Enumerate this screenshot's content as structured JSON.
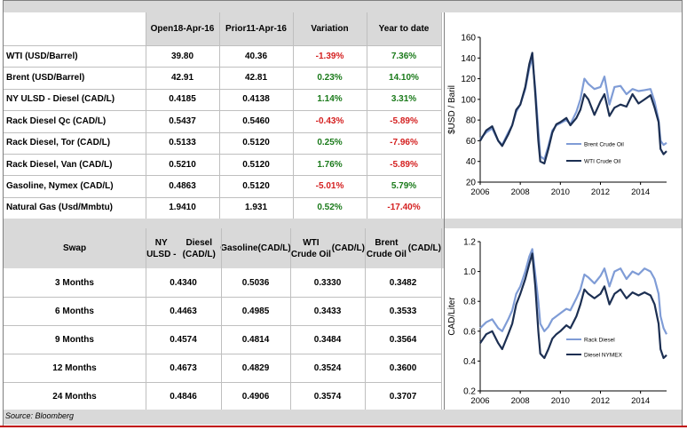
{
  "commodities": {
    "headers": {
      "open_line1": "Open",
      "open_line2": "18-Apr-16",
      "prior_line1": "Prior",
      "prior_line2": "11-Apr-16",
      "variation": "Variation",
      "ytd": "Year to date"
    },
    "rows": [
      {
        "name": "WTI (USD/Barrel)",
        "open": "39.80",
        "prior": "40.36",
        "variation": "-1.39%",
        "ytd": "7.36%",
        "var_positive": false,
        "ytd_positive": true
      },
      {
        "name": "Brent (USD/Barrel)",
        "open": "42.91",
        "prior": "42.81",
        "variation": "0.23%",
        "ytd": "14.10%",
        "var_positive": true,
        "ytd_positive": true
      },
      {
        "name": "NY ULSD - Diesel (CAD/L)",
        "open": "0.4185",
        "prior": "0.4138",
        "variation": "1.14%",
        "ytd": "3.31%",
        "var_positive": true,
        "ytd_positive": true
      },
      {
        "name": "Rack Diesel Qc (CAD/L)",
        "open": "0.5437",
        "prior": "0.5460",
        "variation": "-0.43%",
        "ytd": "-5.89%",
        "var_positive": false,
        "ytd_positive": false
      },
      {
        "name": "Rack Diesel, Tor (CAD/L)",
        "open": "0.5133",
        "prior": "0.5120",
        "variation": "0.25%",
        "ytd": "-7.96%",
        "var_positive": true,
        "ytd_positive": false
      },
      {
        "name": "Rack Diesel, Van (CAD/L)",
        "open": "0.5210",
        "prior": "0.5120",
        "variation": "1.76%",
        "ytd": "-5.89%",
        "var_positive": true,
        "ytd_positive": false
      },
      {
        "name": "Gasoline, Nymex (CAD/L)",
        "open": "0.4863",
        "prior": "0.5120",
        "variation": "-5.01%",
        "ytd": "5.79%",
        "var_positive": false,
        "ytd_positive": true
      },
      {
        "name": "Natural Gas (Usd/Mmbtu)",
        "open": "1.9410",
        "prior": "1.931",
        "variation": "0.52%",
        "ytd": "-17.40%",
        "var_positive": true,
        "ytd_positive": false
      }
    ]
  },
  "swaps": {
    "headers": {
      "swap": "Swap",
      "ulsd_line1": "NY ULSD -",
      "ulsd_line2": "Diesel (CAD/L)",
      "gas_line1": "Gasoline",
      "gas_line2": "(CAD/L)",
      "wti_line1": "WTI Crude Oil",
      "wti_line2": "(CAD/L)",
      "brent_line1": "Brent Crude Oil",
      "brent_line2": "(CAD/L)"
    },
    "rows": [
      {
        "term": "3 Months",
        "ulsd": "0.4340",
        "gasoline": "0.5036",
        "wti": "0.3330",
        "brent": "0.3482"
      },
      {
        "term": "6 Months",
        "ulsd": "0.4463",
        "gasoline": "0.4985",
        "wti": "0.3433",
        "brent": "0.3533"
      },
      {
        "term": "9 Months",
        "ulsd": "0.4574",
        "gasoline": "0.4814",
        "wti": "0.3484",
        "brent": "0.3564"
      },
      {
        "term": "12 Months",
        "ulsd": "0.4673",
        "gasoline": "0.4829",
        "wti": "0.3524",
        "brent": "0.3600"
      },
      {
        "term": "24 Months",
        "ulsd": "0.4846",
        "gasoline": "0.4906",
        "wti": "0.3574",
        "brent": "0.3707"
      }
    ]
  },
  "source": "Source: Bloomberg",
  "colors": {
    "dark_series": "#1c2f52",
    "light_series": "#7f9cd6",
    "positive": "#1a7a1a",
    "negative": "#d42020",
    "band": "#d9d9d9"
  },
  "chart_data": [
    {
      "type": "line",
      "title": "",
      "xlabel": "",
      "ylabel": "$USD / Baril",
      "xlim": [
        2006,
        2015.3
      ],
      "ylim": [
        20,
        160
      ],
      "xticks": [
        2006,
        2008,
        2010,
        2012,
        2014
      ],
      "yticks": [
        20,
        40,
        60,
        80,
        100,
        120,
        140,
        160
      ],
      "legend_position": "right",
      "series": [
        {
          "name": "Brent Crude Oil",
          "color": "#7f9cd6",
          "x": [
            2006.0,
            2006.3,
            2006.6,
            2006.9,
            2007.1,
            2007.4,
            2007.6,
            2007.8,
            2008.0,
            2008.25,
            2008.45,
            2008.6,
            2008.75,
            2008.9,
            2009.0,
            2009.2,
            2009.4,
            2009.6,
            2009.8,
            2010.0,
            2010.3,
            2010.5,
            2010.8,
            2011.0,
            2011.2,
            2011.4,
            2011.7,
            2012.0,
            2012.2,
            2012.45,
            2012.7,
            2013.0,
            2013.3,
            2013.6,
            2013.9,
            2014.2,
            2014.5,
            2014.7,
            2014.9,
            2015.0,
            2015.15,
            2015.3
          ],
          "y": [
            62,
            68,
            72,
            60,
            56,
            68,
            75,
            88,
            95,
            110,
            130,
            140,
            110,
            70,
            45,
            42,
            55,
            70,
            75,
            77,
            80,
            76,
            88,
            100,
            120,
            115,
            110,
            112,
            122,
            95,
            112,
            113,
            105,
            110,
            108,
            109,
            110,
            98,
            80,
            60,
            56,
            58
          ]
        },
        {
          "name": "WTI Crude Oil",
          "color": "#1c2f52",
          "x": [
            2006.0,
            2006.3,
            2006.6,
            2006.9,
            2007.1,
            2007.4,
            2007.6,
            2007.8,
            2008.0,
            2008.25,
            2008.45,
            2008.6,
            2008.75,
            2008.9,
            2009.0,
            2009.2,
            2009.4,
            2009.6,
            2009.8,
            2010.0,
            2010.3,
            2010.5,
            2010.8,
            2011.0,
            2011.2,
            2011.4,
            2011.7,
            2012.0,
            2012.2,
            2012.45,
            2012.7,
            2013.0,
            2013.3,
            2013.6,
            2013.9,
            2014.2,
            2014.5,
            2014.7,
            2014.9,
            2015.0,
            2015.15,
            2015.3
          ],
          "y": [
            60,
            70,
            74,
            60,
            55,
            66,
            75,
            90,
            95,
            112,
            134,
            145,
            105,
            60,
            40,
            38,
            52,
            68,
            76,
            78,
            82,
            75,
            82,
            90,
            105,
            100,
            85,
            98,
            105,
            84,
            92,
            95,
            93,
            105,
            96,
            100,
            104,
            92,
            78,
            52,
            47,
            50
          ]
        }
      ]
    },
    {
      "type": "line",
      "title": "",
      "xlabel": "",
      "ylabel": "CAD/Liter",
      "xlim": [
        2006,
        2015.3
      ],
      "ylim": [
        0.2,
        1.2
      ],
      "xticks": [
        2006,
        2008,
        2010,
        2012,
        2014
      ],
      "yticks": [
        0.2,
        0.4,
        0.6,
        0.8,
        1.0,
        1.2
      ],
      "legend_position": "right",
      "series": [
        {
          "name": "Rack Diesel",
          "color": "#7f9cd6",
          "x": [
            2006.0,
            2006.3,
            2006.6,
            2006.9,
            2007.1,
            2007.4,
            2007.6,
            2007.8,
            2008.0,
            2008.25,
            2008.45,
            2008.6,
            2008.75,
            2008.9,
            2009.0,
            2009.2,
            2009.4,
            2009.6,
            2009.8,
            2010.0,
            2010.3,
            2010.5,
            2010.8,
            2011.0,
            2011.2,
            2011.4,
            2011.7,
            2012.0,
            2012.2,
            2012.45,
            2012.7,
            2013.0,
            2013.3,
            2013.6,
            2013.9,
            2014.2,
            2014.5,
            2014.7,
            2014.9,
            2015.0,
            2015.15,
            2015.3
          ],
          "y": [
            0.62,
            0.66,
            0.68,
            0.62,
            0.6,
            0.68,
            0.74,
            0.85,
            0.9,
            1.0,
            1.1,
            1.15,
            0.98,
            0.8,
            0.65,
            0.6,
            0.63,
            0.68,
            0.7,
            0.72,
            0.75,
            0.74,
            0.82,
            0.88,
            0.98,
            0.96,
            0.92,
            0.97,
            1.02,
            0.9,
            1.0,
            1.02,
            0.95,
            1.0,
            0.98,
            1.02,
            1.0,
            0.95,
            0.85,
            0.7,
            0.62,
            0.58
          ]
        },
        {
          "name": "Diesel NYMEX",
          "color": "#1c2f52",
          "x": [
            2006.0,
            2006.3,
            2006.6,
            2006.9,
            2007.1,
            2007.4,
            2007.6,
            2007.8,
            2008.0,
            2008.25,
            2008.45,
            2008.6,
            2008.75,
            2008.9,
            2009.0,
            2009.2,
            2009.4,
            2009.6,
            2009.8,
            2010.0,
            2010.3,
            2010.5,
            2010.8,
            2011.0,
            2011.2,
            2011.4,
            2011.7,
            2012.0,
            2012.2,
            2012.45,
            2012.7,
            2013.0,
            2013.3,
            2013.6,
            2013.9,
            2014.2,
            2014.5,
            2014.7,
            2014.9,
            2015.0,
            2015.15,
            2015.3
          ],
          "y": [
            0.52,
            0.58,
            0.6,
            0.52,
            0.48,
            0.58,
            0.65,
            0.78,
            0.85,
            0.95,
            1.05,
            1.12,
            0.9,
            0.6,
            0.45,
            0.42,
            0.48,
            0.55,
            0.58,
            0.6,
            0.64,
            0.62,
            0.7,
            0.78,
            0.88,
            0.85,
            0.82,
            0.85,
            0.9,
            0.78,
            0.85,
            0.88,
            0.82,
            0.86,
            0.84,
            0.86,
            0.84,
            0.78,
            0.65,
            0.48,
            0.42,
            0.44
          ]
        }
      ]
    }
  ]
}
